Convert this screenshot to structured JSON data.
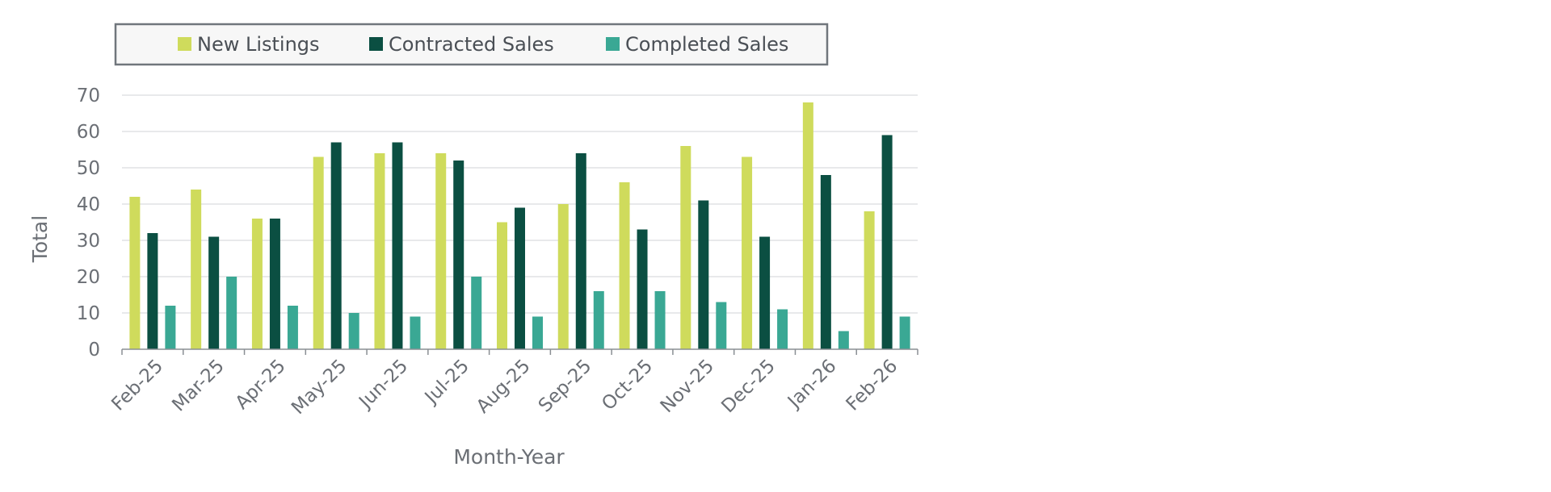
{
  "chart_data": {
    "type": "bar",
    "title": "",
    "xlabel": "Month-Year",
    "ylabel": "Total",
    "ylim": [
      0,
      70
    ],
    "yticks": [
      0,
      10,
      20,
      30,
      40,
      50,
      60,
      70
    ],
    "grid": true,
    "legend_position": "top",
    "categories": [
      "Feb-25",
      "Mar-25",
      "Apr-25",
      "May-25",
      "Jun-25",
      "Jul-25",
      "Aug-25",
      "Sep-25",
      "Oct-25",
      "Nov-25",
      "Dec-25",
      "Jan-26",
      "Feb-26"
    ],
    "series": [
      {
        "name": "New Listings",
        "color": "#cfdb5c",
        "values": [
          42,
          44,
          36,
          53,
          54,
          54,
          35,
          40,
          46,
          56,
          53,
          68,
          38
        ]
      },
      {
        "name": "Contracted Sales",
        "color": "#0b4f42",
        "values": [
          32,
          31,
          36,
          57,
          57,
          52,
          39,
          54,
          33,
          41,
          31,
          48,
          59
        ]
      },
      {
        "name": "Completed Sales",
        "color": "#3aa894",
        "values": [
          12,
          20,
          12,
          10,
          9,
          20,
          9,
          16,
          16,
          13,
          11,
          5,
          9
        ]
      }
    ]
  }
}
